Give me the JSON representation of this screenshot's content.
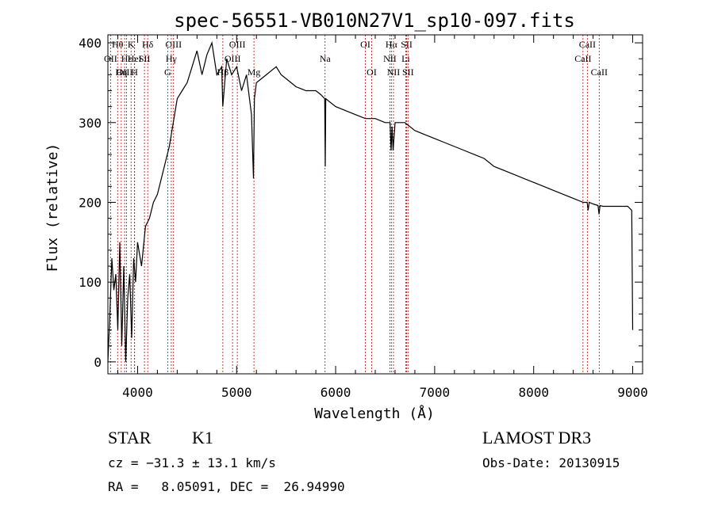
{
  "chart_data": {
    "type": "line",
    "title": "spec-56551-VB010N27V1_sp10-097.fits",
    "xlabel": "Wavelength (Å)",
    "ylabel": "Flux (relative)",
    "xlim": [
      3700,
      9100
    ],
    "ylim": [
      -15,
      410
    ],
    "x_ticks": [
      4000,
      5000,
      6000,
      7000,
      8000,
      9000
    ],
    "y_ticks": [
      0,
      100,
      200,
      300,
      400
    ],
    "x_tick_labels": [
      "4000",
      "5000",
      "6000",
      "7000",
      "8000",
      "9000"
    ],
    "y_tick_labels": [
      "0",
      "100",
      "200",
      "300",
      "400"
    ],
    "grid": false,
    "series": [
      {
        "name": "spectrum",
        "x": [
          3700,
          3720,
          3740,
          3760,
          3780,
          3800,
          3820,
          3840,
          3860,
          3880,
          3900,
          3920,
          3940,
          3960,
          3980,
          4000,
          4040,
          4080,
          4120,
          4160,
          4200,
          4240,
          4280,
          4320,
          4360,
          4400,
          4450,
          4500,
          4550,
          4600,
          4650,
          4700,
          4750,
          4800,
          4850,
          4860,
          4900,
          4950,
          5000,
          5050,
          5100,
          5150,
          5170,
          5180,
          5200,
          5250,
          5300,
          5350,
          5400,
          5450,
          5500,
          5600,
          5700,
          5800,
          5850,
          5890,
          5895,
          5900,
          5950,
          6000,
          6100,
          6200,
          6300,
          6400,
          6500,
          6550,
          6560,
          6570,
          6580,
          6600,
          6650,
          6700,
          6800,
          6900,
          7000,
          7100,
          7200,
          7300,
          7400,
          7500,
          7600,
          7700,
          7800,
          7900,
          8000,
          8100,
          8200,
          8300,
          8400,
          8500,
          8540,
          8550,
          8560,
          8600,
          8650,
          8660,
          8670,
          8700,
          8800,
          8900,
          8950,
          8990,
          9000
        ],
        "values": [
          0,
          60,
          130,
          90,
          110,
          40,
          150,
          20,
          120,
          0,
          80,
          110,
          30,
          130,
          100,
          150,
          120,
          170,
          180,
          200,
          210,
          230,
          250,
          270,
          300,
          330,
          340,
          350,
          370,
          390,
          360,
          385,
          400,
          360,
          370,
          320,
          380,
          360,
          370,
          340,
          360,
          310,
          230,
          330,
          350,
          355,
          360,
          365,
          370,
          360,
          355,
          345,
          340,
          340,
          335,
          330,
          245,
          330,
          325,
          320,
          315,
          310,
          305,
          305,
          300,
          300,
          265,
          295,
          265,
          300,
          300,
          300,
          290,
          285,
          280,
          275,
          270,
          265,
          260,
          255,
          245,
          240,
          235,
          230,
          225,
          220,
          215,
          210,
          205,
          200,
          200,
          190,
          200,
          198,
          196,
          185,
          196,
          195,
          195,
          195,
          195,
          190,
          40
        ]
      }
    ],
    "lines": [
      {
        "name": "Hθ",
        "wl": 3798,
        "row": 1
      },
      {
        "name": "OII",
        "wl": 3727,
        "row": 2
      },
      {
        "name": "OIII",
        "wl": 3869,
        "row": 3
      },
      {
        "name": "K",
        "wl": 3934,
        "row": 1
      },
      {
        "name": "Hε",
        "wl": 3889,
        "row": 2
      },
      {
        "name": "Hη",
        "wl": 3835,
        "row": 3
      },
      {
        "name": "HeI",
        "wl": 3970,
        "row": 2
      },
      {
        "name": "H",
        "wl": 3969,
        "row": 3
      },
      {
        "name": "Hδ",
        "wl": 4102,
        "row": 1
      },
      {
        "name": "SII",
        "wl": 4069,
        "row": 2
      },
      {
        "name": "OIII",
        "wl": 4363,
        "row": 1
      },
      {
        "name": "Hγ",
        "wl": 4340,
        "row": 2
      },
      {
        "name": "G",
        "wl": 4304,
        "row": 3
      },
      {
        "name": "OIII",
        "wl": 5007,
        "row": 1
      },
      {
        "name": "OIII",
        "wl": 4959,
        "row": 2
      },
      {
        "name": "Hβ",
        "wl": 4861,
        "row": 3
      },
      {
        "name": "Mg",
        "wl": 5175,
        "row": 3
      },
      {
        "name": "Na",
        "wl": 5893,
        "row": 2
      },
      {
        "name": "OI",
        "wl": 6300,
        "row": 1
      },
      {
        "name": "OI",
        "wl": 6364,
        "row": 3
      },
      {
        "name": "Hα",
        "wl": 6563,
        "row": 1
      },
      {
        "name": "NII",
        "wl": 6548,
        "row": 2
      },
      {
        "name": "NII",
        "wl": 6584,
        "row": 3
      },
      {
        "name": "SII",
        "wl": 6717,
        "row": 1
      },
      {
        "name": "Li",
        "wl": 6708,
        "row": 2
      },
      {
        "name": "SII",
        "wl": 6731,
        "row": 3
      },
      {
        "name": "CaII",
        "wl": 8542,
        "row": 1
      },
      {
        "name": "CaII",
        "wl": 8498,
        "row": 2
      },
      {
        "name": "CaII",
        "wl": 8662,
        "row": 3
      }
    ]
  },
  "info": {
    "object_class": "STAR",
    "subclass": "K1",
    "survey": "LAMOST DR3",
    "cz": "cz = −31.3 ± 13.1 km/s",
    "obs_date": "Obs-Date: 20130915",
    "coords": "RA =   8.05091, DEC =  26.94990"
  },
  "colors": {
    "line_marker": "#cc0000",
    "spectrum": "#000000"
  }
}
